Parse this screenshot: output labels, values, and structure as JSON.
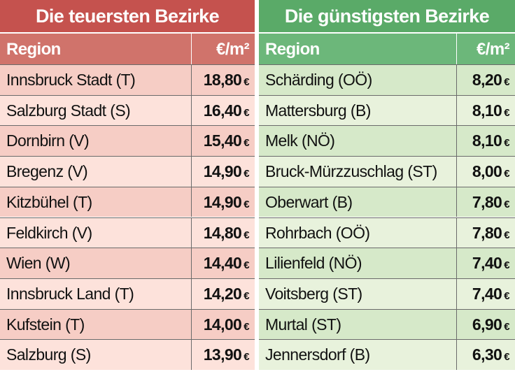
{
  "left": {
    "title": "Die teuersten Bezirke",
    "header": [
      "Region",
      "€/m²"
    ],
    "rows": [
      [
        "Innsbruck Stadt (T)",
        "18,80",
        "€"
      ],
      [
        "Salzburg Stadt (S)",
        "16,40",
        "€"
      ],
      [
        "Dornbirn (V)",
        "15,40",
        "€"
      ],
      [
        "Bregenz (V)",
        "14,90",
        "€"
      ],
      [
        "Kitzbühel (T)",
        "14,90",
        "€"
      ],
      [
        "Feldkirch (V)",
        "14,80",
        "€"
      ],
      [
        "Wien (W)",
        "14,40",
        "€"
      ],
      [
        "Innsbruck Land (T)",
        "14,20",
        "€"
      ],
      [
        "Kufstein (T)",
        "14,00",
        "€"
      ],
      [
        "Salzburg (S)",
        "13,90",
        "€"
      ]
    ]
  },
  "right": {
    "title": "Die günstigsten Bezirke",
    "header": [
      "Region",
      "€/m²"
    ],
    "rows": [
      [
        "Schärding (OÖ)",
        "8,20",
        "€"
      ],
      [
        "Mattersburg (B)",
        "8,10",
        "€"
      ],
      [
        "Melk (NÖ)",
        "8,10",
        "€"
      ],
      [
        "Bruck-Mürzzuschlag (ST)",
        "8,00",
        "€"
      ],
      [
        "Oberwart (B)",
        "7,80",
        "€"
      ],
      [
        "Rohrbach (OÖ)",
        "7,80",
        "€"
      ],
      [
        "Lilienfeld (NÖ)",
        "7,40",
        "€"
      ],
      [
        "Voitsberg (ST)",
        "7,40",
        "€"
      ],
      [
        "Murtal (ST)",
        "6,90",
        "€"
      ],
      [
        "Jennersdorf (B)",
        "6,30",
        "€"
      ]
    ]
  }
}
